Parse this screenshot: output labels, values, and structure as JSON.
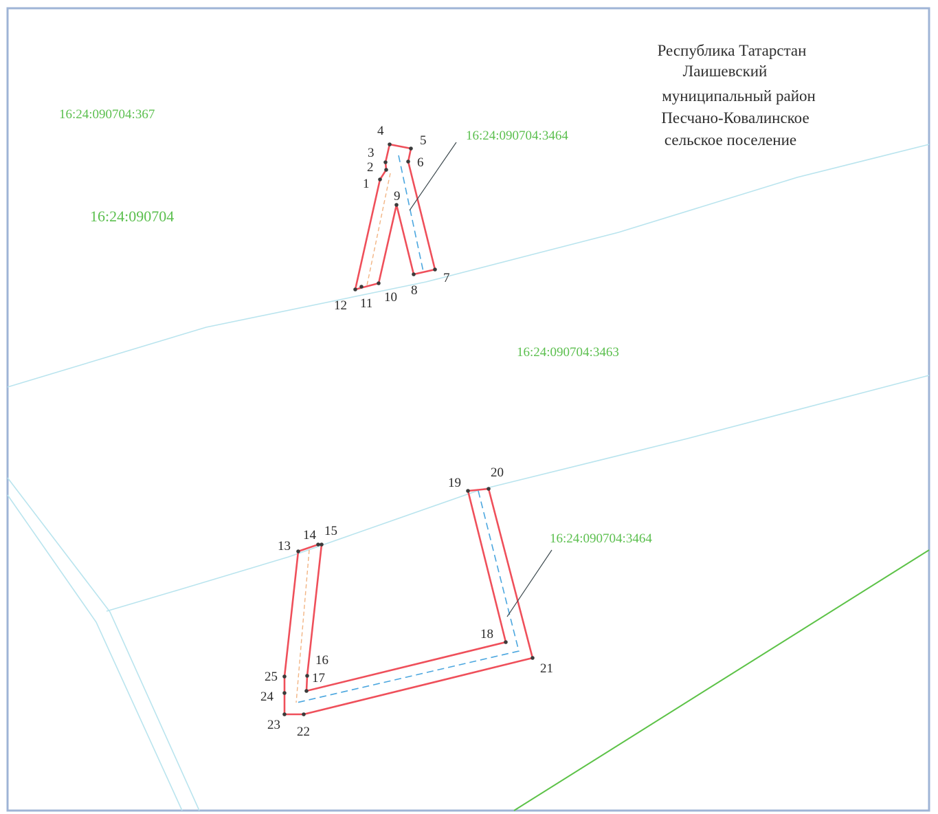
{
  "header": {
    "title_lines": [
      "Республика Татарстан",
      "Лаишевский",
      "муниципальный район",
      "Песчано-Ковалинское",
      "сельское поселение"
    ]
  },
  "map": {
    "cadastral_labels": [
      {
        "id": "a",
        "text": "16:24:090704:367"
      },
      {
        "id": "b",
        "text": "16:24:090704"
      },
      {
        "id": "c",
        "text": "16:24:090704:3464"
      },
      {
        "id": "d",
        "text": "16:24:090704:3463"
      },
      {
        "id": "e",
        "text": "16:24:090704:3464"
      }
    ],
    "point_labels": [
      "1",
      "2",
      "3",
      "4",
      "5",
      "6",
      "7",
      "8",
      "9",
      "10",
      "11",
      "12",
      "13",
      "14",
      "15",
      "16",
      "17",
      "18",
      "19",
      "20",
      "21",
      "22",
      "23",
      "24",
      "25"
    ]
  },
  "colors": {
    "frame": "#9fb4d6",
    "parcel_boundary": "#b9e4ee",
    "contour": "#ef4f5a",
    "axis": "#4aa6df",
    "cadastral_text": "#5bbf4e",
    "green_boundary": "#5cc247"
  }
}
